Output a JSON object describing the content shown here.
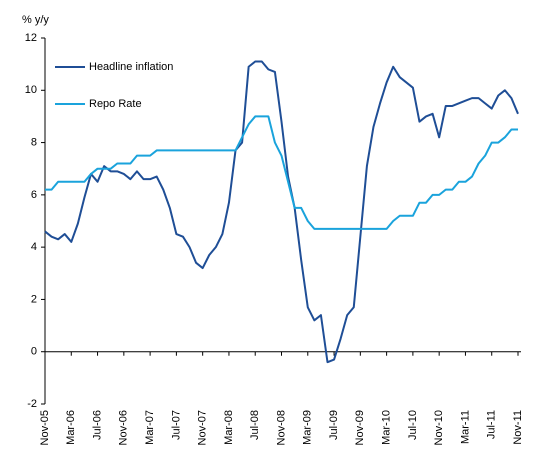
{
  "chart_data": {
    "type": "line",
    "y_label": "% y/y",
    "categories": [
      "Nov-05",
      null,
      null,
      null,
      "Mar-06",
      null,
      null,
      null,
      "Jul-06",
      null,
      null,
      null,
      "Nov-06",
      null,
      null,
      null,
      "Mar-07",
      null,
      null,
      null,
      "Jul-07",
      null,
      null,
      null,
      "Nov-07",
      null,
      null,
      null,
      "Mar-08",
      null,
      null,
      null,
      "Jul-08",
      null,
      null,
      null,
      "Nov-08",
      null,
      null,
      null,
      "Mar-09",
      null,
      null,
      null,
      "Jul-09",
      null,
      null,
      null,
      "Nov-09",
      null,
      null,
      null,
      "Mar-10",
      null,
      null,
      null,
      "Jul-10",
      null,
      null,
      null,
      "Nov-10",
      null,
      null,
      null,
      "Mar-11",
      null,
      null,
      null,
      "Jul-11",
      null,
      null,
      null,
      "Nov-11"
    ],
    "series": [
      {
        "name": "Headline inflation",
        "color": "#1f4e96",
        "values": [
          4.6,
          4.4,
          4.3,
          4.5,
          4.2,
          4.9,
          5.9,
          6.8,
          6.5,
          7.1,
          6.9,
          6.9,
          6.8,
          6.6,
          6.9,
          6.6,
          6.6,
          6.7,
          6.2,
          5.5,
          4.5,
          4.4,
          4.0,
          3.4,
          3.2,
          3.7,
          4.0,
          4.5,
          5.7,
          7.7,
          8.0,
          10.9,
          11.1,
          11.1,
          10.8,
          10.7,
          8.8,
          6.7,
          5.5,
          3.5,
          1.7,
          1.2,
          1.4,
          -0.4,
          -0.3,
          0.5,
          1.4,
          1.7,
          4.4,
          7.1,
          8.6,
          9.5,
          10.3,
          10.9,
          10.5,
          10.3,
          10.1,
          8.8,
          9.0,
          9.1,
          8.2,
          9.4,
          9.4,
          9.5,
          9.6,
          9.7,
          9.7,
          9.5,
          9.3,
          9.8,
          10.0,
          9.7,
          9.1
        ]
      },
      {
        "name": "Repo Rate",
        "color": "#1aa3dc",
        "values": [
          6.2,
          6.2,
          6.5,
          6.5,
          6.5,
          6.5,
          6.5,
          6.8,
          7.0,
          7.0,
          7.0,
          7.2,
          7.2,
          7.2,
          7.5,
          7.5,
          7.5,
          7.7,
          7.7,
          7.7,
          7.7,
          7.7,
          7.7,
          7.7,
          7.7,
          7.7,
          7.7,
          7.7,
          7.7,
          7.7,
          8.2,
          8.7,
          9.0,
          9.0,
          9.0,
          8.0,
          7.5,
          6.5,
          5.5,
          5.5,
          5.0,
          4.7,
          4.7,
          4.7,
          4.7,
          4.7,
          4.7,
          4.7,
          4.7,
          4.7,
          4.7,
          4.7,
          4.7,
          5.0,
          5.2,
          5.2,
          5.2,
          5.7,
          5.7,
          6.0,
          6.0,
          6.2,
          6.2,
          6.5,
          6.5,
          6.7,
          7.2,
          7.5,
          8.0,
          8.0,
          8.2,
          8.5,
          8.5
        ]
      }
    ],
    "ylim": [
      -2,
      12
    ],
    "yticks": [
      -2,
      0,
      2,
      4,
      6,
      8,
      10,
      12
    ],
    "grid": false,
    "legend": "upper left"
  }
}
